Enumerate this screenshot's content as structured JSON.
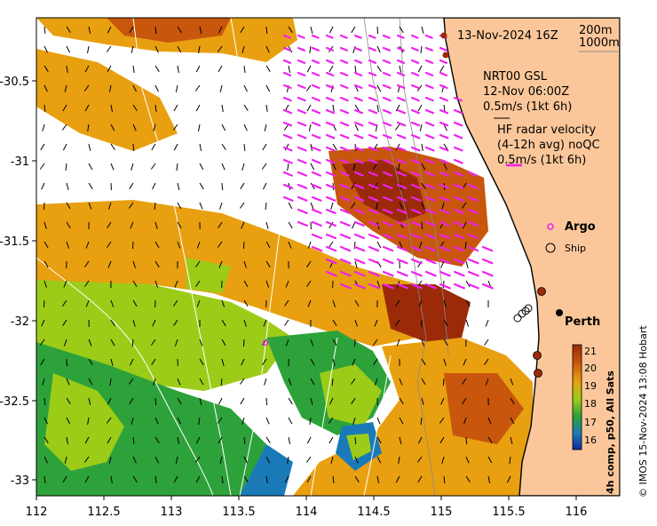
{
  "title": "13-Nov-2024 16Z",
  "depth_legend": [
    "200m",
    "1000m"
  ],
  "gsl": {
    "line1": "NRT00 GSL",
    "line2": "12-Nov 06:00Z",
    "line3": "0.5m/s (1kt 6h)"
  },
  "hf": {
    "line1": "HF radar velocity",
    "line2": "(4-12h avg) noQC",
    "line3": "0.5m/s (1kt 6h)"
  },
  "argo_label": "Argo",
  "ship_label": "Ship",
  "city": "Perth",
  "colorbar": {
    "ticks": [
      "21",
      "20",
      "19",
      "18",
      "17",
      "16"
    ],
    "label": "4h comp, p50, All Sats",
    "colors": [
      "#9a2a08",
      "#c8560c",
      "#e8a010",
      "#9ccc18",
      "#2ea23a",
      "#1a7ab8",
      "#102a9a"
    ]
  },
  "credit": "© IMOS 15-Nov-2024 13:08 Hobart",
  "xticks": [
    "112",
    "112.5",
    "113",
    "113.5",
    "114",
    "114.5",
    "115",
    "115.5",
    "116"
  ],
  "yticks": [
    "-30.5",
    "-31",
    "-31.5",
    "-32",
    "-32.5",
    "-33"
  ],
  "colors": {
    "land": "#fbc79a",
    "hf_arrow": "#ee22ee",
    "coast": "#000000"
  }
}
